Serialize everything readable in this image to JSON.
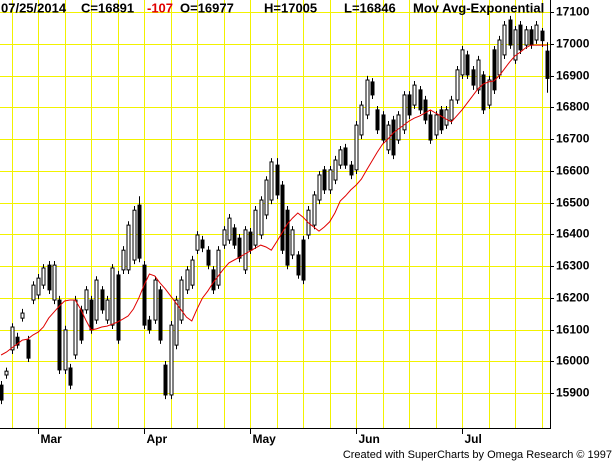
{
  "header": {
    "date": "07/25/2014",
    "close": "C=16891",
    "change": "-107",
    "open": "O=16977",
    "high": "H=17005",
    "low": "L=16846",
    "indicator": "Mov Avg-Exponential"
  },
  "footer": "Created with SuperCharts by Omega Research © 1997",
  "chart_data": {
    "type": "candlestick",
    "xlim": [
      -0.2,
      103.6
    ],
    "xticks": [
      {
        "value": 7,
        "label": "Mar"
      },
      {
        "value": 27,
        "label": "Apr"
      },
      {
        "value": 47,
        "label": "May"
      },
      {
        "value": 67,
        "label": "Jun"
      },
      {
        "value": 87,
        "label": "Jul"
      }
    ],
    "ylim": [
      15790,
      17138
    ],
    "yticks": [
      15900,
      16000,
      16100,
      16200,
      16300,
      16400,
      16500,
      16600,
      16700,
      16800,
      16900,
      17000,
      17100
    ],
    "grid": true,
    "grid_color": "#f2f200",
    "up_color": "#ffffff",
    "down_color": "#000000",
    "open": [
      15925,
      15957,
      16036,
      16076,
      16136,
      16067,
      16193,
      16209,
      16240,
      16303,
      16193,
      16193,
      15973,
      15979,
      16020,
      16162,
      16162,
      16193,
      16130,
      16225,
      16130,
      16114,
      16272,
      16288,
      16288,
      16319,
      16492,
      16303,
      16130,
      16130,
      16225,
      15988,
      15894,
      16051,
      16130,
      16225,
      16240,
      16350,
      16382,
      16350,
      16288,
      16240,
      16366,
      16382,
      16420,
      16388,
      16288,
      16407,
      16366,
      16398,
      16461,
      16508,
      16618,
      16555,
      16476,
      16335,
      16335,
      16382,
      16398,
      16429,
      16508,
      16603,
      16540,
      16571,
      16618,
      16672,
      16618,
      16603,
      16713,
      16776,
      16880,
      16792,
      16776,
      16666,
      16760,
      16697,
      16729,
      16839,
      16807,
      16855,
      16823,
      16776,
      16713,
      16792,
      16744,
      16760,
      16823,
      16902,
      16965,
      16918,
      16855,
      16902,
      16807,
      16981,
      16902,
      16965,
      17075,
      16949,
      17059,
      16996,
      17044,
      17012,
      17040,
      16977
    ],
    "high": [
      15938,
      15980,
      16120,
      16090,
      16165,
      16080,
      16252,
      16275,
      16306,
      16316,
      16316,
      16206,
      16112,
      15992,
      16206,
      16175,
      16237,
      16206,
      16268,
      16237,
      16206,
      16306,
      16285,
      16363,
      16441,
      16489,
      16520,
      16316,
      16143,
      16268,
      16237,
      16001,
      16127,
      16206,
      16268,
      16300,
      16332,
      16410,
      16395,
      16363,
      16300,
      16363,
      16426,
      16464,
      16432,
      16401,
      16426,
      16420,
      16489,
      16520,
      16583,
      16640,
      16640,
      16568,
      16489,
      16426,
      16347,
      16395,
      16489,
      16536,
      16599,
      16615,
      16615,
      16647,
      16678,
      16685,
      16631,
      16757,
      16820,
      16899,
      16892,
      16804,
      16788,
      16757,
      16773,
      16788,
      16851,
      16851,
      16883,
      16867,
      16836,
      16788,
      16788,
      16804,
      16804,
      16836,
      16930,
      16993,
      16978,
      16930,
      16962,
      16914,
      16899,
      16993,
      17025,
      17072,
      17088,
      17056,
      17072,
      17056,
      17056,
      17072,
      17050,
      17005
    ],
    "low": [
      15865,
      15945,
      16023,
      16040,
      16125,
      15998,
      16180,
      16196,
      16228,
      16212,
      16180,
      15960,
      15960,
      15912,
      16007,
      16055,
      16150,
      16087,
      16118,
      16150,
      16118,
      16102,
      16055,
      16275,
      16275,
      16306,
      16312,
      16102,
      16087,
      16118,
      16055,
      15881,
      15881,
      16038,
      16118,
      16212,
      16228,
      16338,
      16344,
      16290,
      16212,
      16228,
      16354,
      16370,
      16354,
      16312,
      16275,
      16338,
      16354,
      16385,
      16448,
      16495,
      16511,
      16338,
      16290,
      16322,
      16260,
      16243,
      16385,
      16416,
      16495,
      16527,
      16527,
      16558,
      16606,
      16606,
      16574,
      16590,
      16700,
      16763,
      16826,
      16716,
      16685,
      16653,
      16637,
      16685,
      16716,
      16763,
      16795,
      16779,
      16747,
      16685,
      16700,
      16716,
      16732,
      16747,
      16811,
      16889,
      16889,
      16855,
      16842,
      16779,
      16795,
      16842,
      16889,
      16952,
      16984,
      16937,
      16968,
      16984,
      16984,
      17000,
      16990,
      16846
    ],
    "close": [
      15878,
      15969,
      16108,
      16051,
      16152,
      16010,
      16240,
      16262,
      16294,
      16225,
      16303,
      15973,
      16099,
      15925,
      16193,
      16067,
      16225,
      16099,
      16256,
      16162,
      16193,
      16294,
      16067,
      16350,
      16429,
      16476,
      16325,
      16114,
      16099,
      16256,
      16067,
      15894,
      16114,
      16193,
      16256,
      16288,
      16319,
      16398,
      16357,
      16303,
      16225,
      16350,
      16414,
      16451,
      16366,
      16325,
      16414,
      16350,
      16476,
      16508,
      16571,
      16628,
      16524,
      16350,
      16303,
      16414,
      16272,
      16256,
      16476,
      16524,
      16587,
      16540,
      16603,
      16634,
      16666,
      16618,
      16587,
      16744,
      16807,
      16886,
      16839,
      16729,
      16697,
      16744,
      16650,
      16776,
      16839,
      16776,
      16870,
      16792,
      16760,
      16697,
      16776,
      16729,
      16792,
      16823,
      16918,
      16981,
      16902,
      16870,
      16949,
      16792,
      16886,
      16855,
      17012,
      17059,
      16996,
      17044,
      16981,
      17044,
      16996,
      17059,
      17010,
      16891
    ],
    "series": [
      {
        "name": "Mov Avg-Exponential",
        "color": "#e00000",
        "values": [
          16020,
          16029,
          16042,
          16054,
          16067,
          16070,
          16083,
          16092,
          16108,
          16136,
          16155,
          16174,
          16190,
          16193,
          16193,
          16165,
          16130,
          16099,
          16102,
          16108,
          16111,
          16117,
          16124,
          16133,
          16143,
          16165,
          16199,
          16240,
          16275,
          16269,
          16247,
          16228,
          16206,
          16184,
          16162,
          16139,
          16127,
          16165,
          16199,
          16221,
          16247,
          16269,
          16291,
          16310,
          16319,
          16328,
          16338,
          16347,
          16357,
          16366,
          16360,
          16350,
          16376,
          16404,
          16432,
          16451,
          16467,
          16454,
          16436,
          16423,
          16410,
          16423,
          16439,
          16467,
          16505,
          16521,
          16540,
          16555,
          16574,
          16603,
          16631,
          16659,
          16684,
          16700,
          16719,
          16732,
          16744,
          16757,
          16766,
          16773,
          16782,
          16792,
          16782,
          16773,
          16763,
          16754,
          16773,
          16792,
          16814,
          16836,
          16858,
          16873,
          16880,
          16883,
          16899,
          16921,
          16943,
          16962,
          16974,
          16987,
          16996,
          16996,
          16996,
          16996
        ]
      }
    ]
  }
}
